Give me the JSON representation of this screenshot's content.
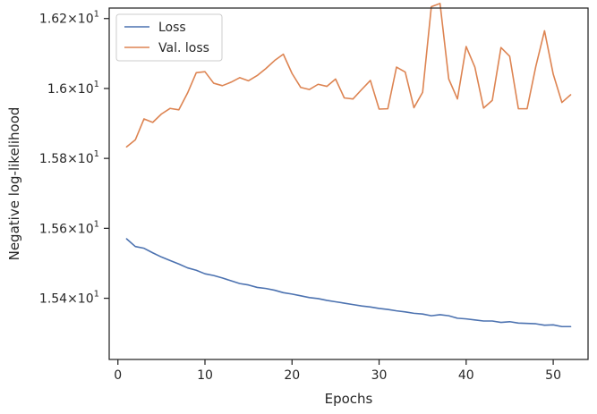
{
  "chart_data": {
    "type": "line",
    "xlabel": "Epochs",
    "ylabel": "Negative log-likelihood",
    "x_ticks": [
      0,
      10,
      20,
      30,
      40,
      50
    ],
    "xlim": [
      -1,
      54
    ],
    "y_ticks": [
      15.4,
      15.6,
      15.8,
      16.0,
      16.2
    ],
    "y_tick_labels": [
      "1.54×10",
      "1.56×10",
      "1.58×10",
      "1.6×10",
      "1.62×10"
    ],
    "y_tick_exponent": "1",
    "ylim": [
      15.225,
      16.23
    ],
    "legend_position": "upper left",
    "x": [
      1,
      2,
      3,
      4,
      5,
      6,
      7,
      8,
      9,
      10,
      11,
      12,
      13,
      14,
      15,
      16,
      17,
      18,
      19,
      20,
      21,
      22,
      23,
      24,
      25,
      26,
      27,
      28,
      29,
      30,
      31,
      32,
      33,
      34,
      35,
      36,
      37,
      38,
      39,
      40,
      41,
      42,
      43,
      44,
      45,
      46,
      47,
      48,
      49,
      50,
      51,
      52
    ],
    "series": [
      {
        "name": "Loss",
        "color": "#4c72b0",
        "values": [
          15.57,
          15.548,
          15.543,
          15.53,
          15.518,
          15.508,
          15.498,
          15.487,
          15.48,
          15.47,
          15.465,
          15.458,
          15.45,
          15.442,
          15.438,
          15.431,
          15.428,
          15.423,
          15.416,
          15.412,
          15.407,
          15.402,
          15.399,
          15.394,
          15.39,
          15.386,
          15.382,
          15.378,
          15.375,
          15.371,
          15.368,
          15.364,
          15.361,
          15.357,
          15.355,
          15.35,
          15.353,
          15.35,
          15.343,
          15.341,
          15.338,
          15.335,
          15.335,
          15.331,
          15.333,
          15.329,
          15.328,
          15.327,
          15.323,
          15.324,
          15.319,
          15.319
        ]
      },
      {
        "name": "Val. loss",
        "color": "#dd8452",
        "values": [
          15.833,
          15.853,
          15.913,
          15.903,
          15.927,
          15.943,
          15.939,
          15.987,
          16.045,
          16.048,
          16.015,
          16.008,
          16.018,
          16.031,
          16.022,
          16.037,
          16.057,
          16.08,
          16.098,
          16.043,
          16.003,
          15.997,
          16.012,
          16.006,
          16.027,
          15.973,
          15.97,
          15.997,
          16.023,
          15.941,
          15.942,
          16.061,
          16.047,
          15.945,
          15.989,
          16.234,
          16.243,
          16.027,
          15.97,
          16.12,
          16.061,
          15.944,
          15.966,
          16.117,
          16.092,
          15.942,
          15.942,
          16.063,
          16.165,
          16.041,
          15.96,
          15.982
        ]
      }
    ]
  }
}
